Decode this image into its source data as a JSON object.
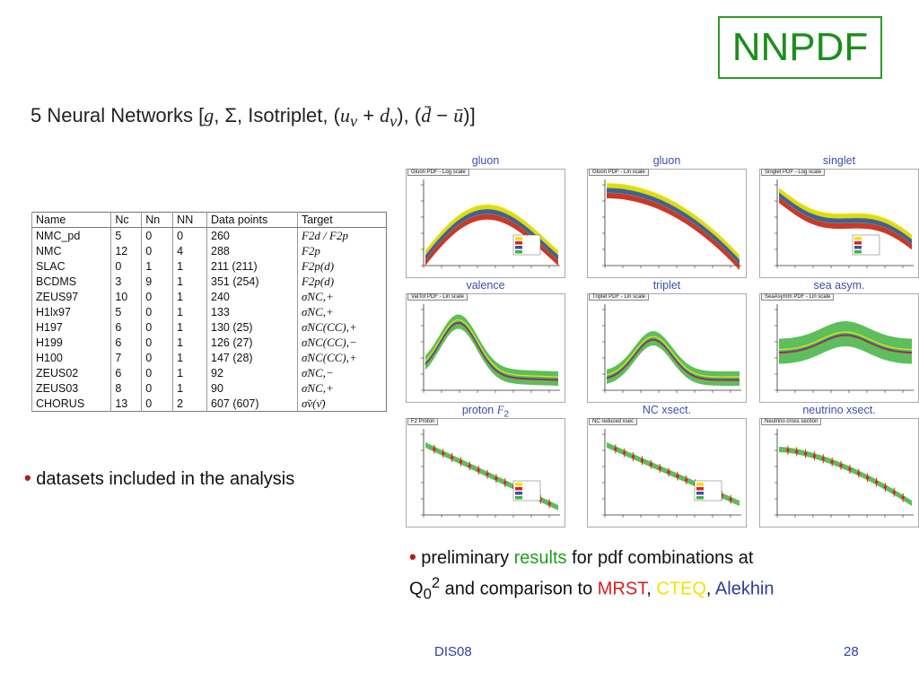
{
  "logo": "NNPDF",
  "title": {
    "prefix": "5 Neural Networks [",
    "g": "g",
    "mid": ", Σ, Isotriplet, (",
    "uv": "u",
    "plus": " + ",
    "dv": "d",
    "mid2": "), (",
    "dbar": "d̄",
    "minus": " − ",
    "ubar": "ū",
    "suffix": ")]",
    "v": "v"
  },
  "table": {
    "headers": [
      "Name",
      "Nc",
      "Nn",
      "NN",
      "Data points",
      "Target"
    ],
    "rows": [
      {
        "name": "NMC_pd",
        "nc": "5",
        "nn": "0",
        "nN": "0",
        "points": "260",
        "target": "F2d / F2p"
      },
      {
        "name": "NMC",
        "nc": "12",
        "nn": "0",
        "nN": "4",
        "points": "288",
        "target": "F2p"
      },
      {
        "name": "SLAC",
        "nc": "0",
        "nn": "1",
        "nN": "1",
        "points": "211 (211)",
        "target": "F2p(d)"
      },
      {
        "name": "BCDMS",
        "nc": "3",
        "nn": "9",
        "nN": "1",
        "points": "351 (254)",
        "target": "F2p(d)"
      },
      {
        "name": "ZEUS97",
        "nc": "10",
        "nn": "0",
        "nN": "1",
        "points": "240",
        "target": "σ̃NC,+"
      },
      {
        "name": "H1lx97",
        "nc": "5",
        "nn": "0",
        "nN": "1",
        "points": "133",
        "target": "σ̃NC,+"
      },
      {
        "name": "H197",
        "nc": "6",
        "nn": "0",
        "nN": "1",
        "points": "130 (25)",
        "target": "σ̃NC(CC),+"
      },
      {
        "name": "H199",
        "nc": "6",
        "nn": "0",
        "nN": "1",
        "points": "126 (27)",
        "target": "σ̃NC(CC),−"
      },
      {
        "name": "H100",
        "nc": "7",
        "nn": "0",
        "nN": "1",
        "points": "147 (28)",
        "target": "σ̃NC(CC),+"
      },
      {
        "name": "ZEUS02",
        "nc": "6",
        "nn": "0",
        "nN": "1",
        "points": "92",
        "target": "σ̃NC,−"
      },
      {
        "name": "ZEUS03",
        "nc": "8",
        "nn": "0",
        "nN": "1",
        "points": "90",
        "target": "σ̃NC,+"
      },
      {
        "name": "CHORUS",
        "nc": "13",
        "nn": "0",
        "nN": "2",
        "points": "607 (607)",
        "target": "σ̃ν(ν̄)"
      }
    ]
  },
  "bullet1": "datasets included in the analysis",
  "bullet2": {
    "a": "preliminary ",
    "results": "results",
    "b": " for pdf combinations at",
    "q": "Q",
    "sub": "0",
    "sup": "2",
    "c": " and comparison to ",
    "mrst": "MRST",
    "comma1": ", ",
    "cteq": "CTEQ",
    "comma2": ", ",
    "alekhin": "Alekhin"
  },
  "panels": [
    {
      "title": "gluon",
      "tag": "Gluon PDF - Log scale"
    },
    {
      "title": "gluon",
      "tag": "Gluon PDF - Lin scale"
    },
    {
      "title": "singlet",
      "tag": "Singlet PDF - Log scale"
    },
    {
      "title": "valence",
      "tag": "ValTot PDF - Lin scale"
    },
    {
      "title": "triplet",
      "tag": "Triplet PDF - Lin scale"
    },
    {
      "title": "sea asym.",
      "tag": "SeaAsymm PDF - Lin scale"
    },
    {
      "title": "proton ",
      "title_var": "F",
      "title_sub": "2",
      "tag": "F2 Proton"
    },
    {
      "title": "NC xsect.",
      "tag": "NC reduced xsec"
    },
    {
      "title": "neutrino xsect.",
      "tag": "Neutrino cross section"
    }
  ],
  "footer": {
    "left": "DIS08",
    "page": "28"
  },
  "colors": {
    "nnpdf": "#3fb33f",
    "mrst": "#e02020",
    "cteq": "#f2e200",
    "alekhin": "#3b4fa8",
    "data": "#e02020"
  }
}
